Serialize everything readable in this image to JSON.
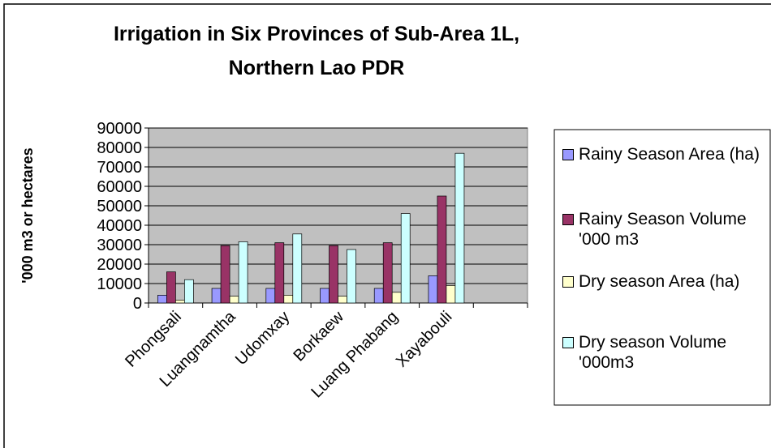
{
  "chart_data": {
    "type": "bar",
    "title": [
      "Irrigation in Six Provinces of Sub-Area 1L,",
      "Northern Lao PDR"
    ],
    "y_label": "'000 m3 or hectares",
    "categories": [
      "Phongsali",
      "Luangnamtha",
      "Udomxay",
      "Borkaew",
      "Luang Phabang",
      "Xayabouli",
      null
    ],
    "series": [
      {
        "name": "Rainy Season Area (ha)",
        "color": "#9999ff",
        "values": [
          4000,
          7500,
          7500,
          7500,
          7500,
          14000,
          null
        ]
      },
      {
        "name": "Rainy Season Volume '000 m3",
        "color": "#993366",
        "values": [
          16000,
          29500,
          31000,
          29500,
          31000,
          55000,
          null
        ]
      },
      {
        "name": "Dry season Area (ha)",
        "color": "#ffffcc",
        "values": [
          1500,
          3500,
          4000,
          3500,
          5500,
          9000,
          null
        ]
      },
      {
        "name": "Dry season Volume '000m3",
        "color": "#ccffff",
        "values": [
          12000,
          31500,
          35500,
          27500,
          46000,
          77000,
          null
        ]
      }
    ],
    "ylim": [
      0,
      90000
    ],
    "yticks": [
      0,
      10000,
      20000,
      30000,
      40000,
      50000,
      60000,
      70000,
      80000,
      90000
    ],
    "grid": true,
    "plot_background": "#c0c0c0",
    "legend": "right"
  }
}
